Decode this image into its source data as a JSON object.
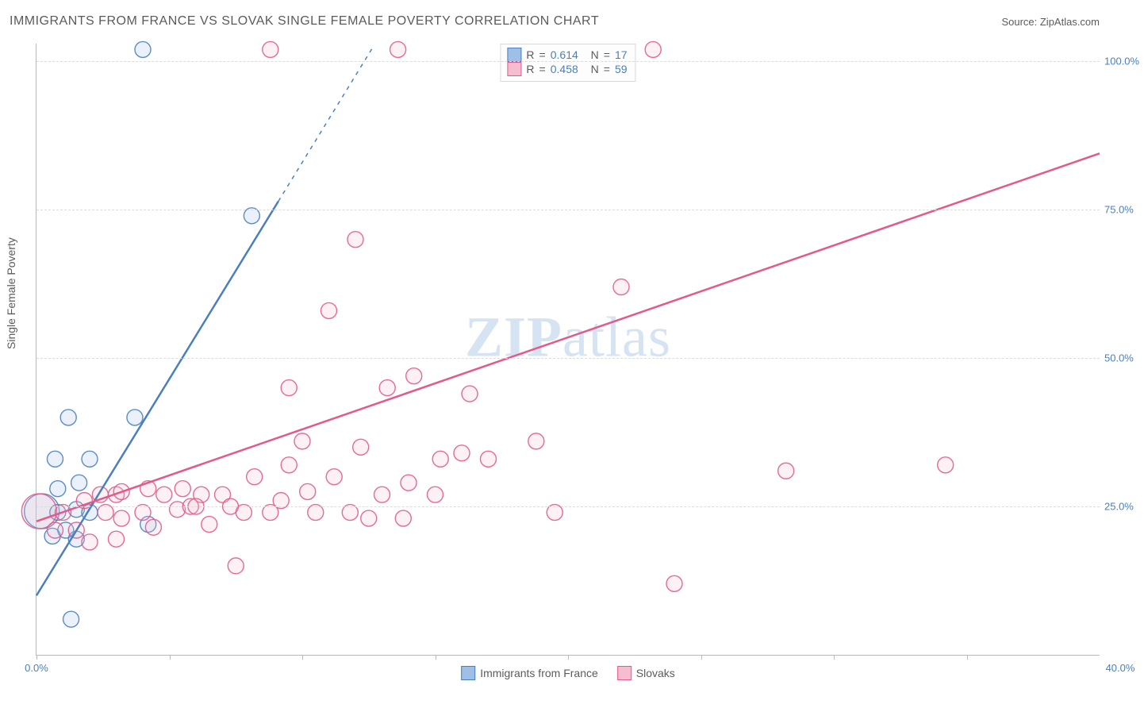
{
  "title": "IMMIGRANTS FROM FRANCE VS SLOVAK SINGLE FEMALE POVERTY CORRELATION CHART",
  "source_label": "Source: ",
  "source_value": "ZipAtlas.com",
  "watermark_a": "ZIP",
  "watermark_b": "atlas",
  "ylabel": "Single Female Poverty",
  "chart": {
    "type": "scatter-correlation",
    "background_color": "#ffffff",
    "axis_color": "#b9b9b9",
    "grid_color": "#dcdcdc",
    "tick_label_color": "#4a7fbf",
    "label_color": "#5b5b5b",
    "label_fontsize": 14,
    "title_fontsize": 16,
    "xlim": [
      0,
      40
    ],
    "ylim": [
      0,
      103
    ],
    "y_gridlines": [
      25,
      50,
      75,
      100
    ],
    "y_tick_labels": [
      "25.0%",
      "50.0%",
      "75.0%",
      "100.0%"
    ],
    "x_ticks": [
      0,
      5,
      10,
      15,
      20,
      25,
      30,
      35
    ],
    "x_tick_labels": [
      "0.0%",
      "40.0%"
    ],
    "marker_radius": 10,
    "marker_fill_opacity": 0.22,
    "marker_stroke_opacity": 0.9,
    "line_width": 2.5,
    "series": [
      {
        "key": "france",
        "label": "Immigrants from France",
        "color": "#4a7fbf",
        "fill": "#9fc0e6",
        "R": "0.614",
        "N": "17",
        "trend": {
          "solid_end_x": 9.1,
          "dash_end_x": 12.7,
          "y_at_0": 10,
          "slope": 7.3
        },
        "points": [
          {
            "x": 0.2,
            "y": 24.2,
            "r": 22
          },
          {
            "x": 0.6,
            "y": 20
          },
          {
            "x": 1.1,
            "y": 21
          },
          {
            "x": 1.5,
            "y": 19.5
          },
          {
            "x": 0.8,
            "y": 24
          },
          {
            "x": 1.5,
            "y": 24.5
          },
          {
            "x": 2.0,
            "y": 24
          },
          {
            "x": 0.8,
            "y": 28
          },
          {
            "x": 1.6,
            "y": 29
          },
          {
            "x": 0.7,
            "y": 33
          },
          {
            "x": 2.0,
            "y": 33
          },
          {
            "x": 1.2,
            "y": 40
          },
          {
            "x": 3.7,
            "y": 40
          },
          {
            "x": 4.2,
            "y": 22
          },
          {
            "x": 8.1,
            "y": 74
          },
          {
            "x": 4.0,
            "y": 102
          },
          {
            "x": 1.3,
            "y": 6
          }
        ]
      },
      {
        "key": "slovaks",
        "label": "Slovaks",
        "color": "#e35a8a",
        "fill": "#f6bdd0",
        "R": "0.458",
        "N": "59",
        "trend": {
          "solid_end_x": 40,
          "dash_end_x": 40,
          "y_at_0": 22.5,
          "slope": 1.55
        },
        "points": [
          {
            "x": 0.1,
            "y": 24.2,
            "r": 22
          },
          {
            "x": 1.0,
            "y": 24
          },
          {
            "x": 1.8,
            "y": 26
          },
          {
            "x": 2.6,
            "y": 24
          },
          {
            "x": 3.2,
            "y": 23
          },
          {
            "x": 2.4,
            "y": 27
          },
          {
            "x": 3.0,
            "y": 27
          },
          {
            "x": 3.2,
            "y": 27.5
          },
          {
            "x": 4.8,
            "y": 27
          },
          {
            "x": 4.0,
            "y": 24
          },
          {
            "x": 5.3,
            "y": 24.5
          },
          {
            "x": 5.8,
            "y": 25
          },
          {
            "x": 6.2,
            "y": 27
          },
          {
            "x": 6.5,
            "y": 22
          },
          {
            "x": 7.0,
            "y": 27
          },
          {
            "x": 7.3,
            "y": 25
          },
          {
            "x": 7.8,
            "y": 24
          },
          {
            "x": 8.2,
            "y": 30
          },
          {
            "x": 9.2,
            "y": 26
          },
          {
            "x": 9.5,
            "y": 32
          },
          {
            "x": 10.0,
            "y": 36
          },
          {
            "x": 10.2,
            "y": 27.5
          },
          {
            "x": 10.5,
            "y": 24
          },
          {
            "x": 11.2,
            "y": 30
          },
          {
            "x": 11.8,
            "y": 24
          },
          {
            "x": 12.2,
            "y": 35
          },
          {
            "x": 12.5,
            "y": 23
          },
          {
            "x": 13.0,
            "y": 27
          },
          {
            "x": 13.2,
            "y": 45
          },
          {
            "x": 13.8,
            "y": 23
          },
          {
            "x": 14.0,
            "y": 29
          },
          {
            "x": 14.2,
            "y": 47
          },
          {
            "x": 12.0,
            "y": 70
          },
          {
            "x": 9.5,
            "y": 45
          },
          {
            "x": 15.0,
            "y": 27
          },
          {
            "x": 15.2,
            "y": 33
          },
          {
            "x": 16.0,
            "y": 34
          },
          {
            "x": 16.3,
            "y": 44
          },
          {
            "x": 17.0,
            "y": 33
          },
          {
            "x": 11.0,
            "y": 58
          },
          {
            "x": 18.8,
            "y": 36
          },
          {
            "x": 19.5,
            "y": 24
          },
          {
            "x": 13.6,
            "y": 102
          },
          {
            "x": 8.8,
            "y": 102
          },
          {
            "x": 23.2,
            "y": 102
          },
          {
            "x": 22.0,
            "y": 62
          },
          {
            "x": 28.2,
            "y": 31
          },
          {
            "x": 34.2,
            "y": 32
          },
          {
            "x": 24.0,
            "y": 12
          },
          {
            "x": 3.0,
            "y": 19.5
          },
          {
            "x": 4.4,
            "y": 21.5
          },
          {
            "x": 7.5,
            "y": 15
          },
          {
            "x": 1.5,
            "y": 21
          },
          {
            "x": 2.0,
            "y": 19
          },
          {
            "x": 5.5,
            "y": 28
          },
          {
            "x": 6.0,
            "y": 25
          },
          {
            "x": 4.2,
            "y": 28
          },
          {
            "x": 0.7,
            "y": 21
          },
          {
            "x": 8.8,
            "y": 24
          }
        ]
      }
    ]
  },
  "legend": {
    "R_label": "R",
    "N_label": "N",
    "eq": "="
  }
}
